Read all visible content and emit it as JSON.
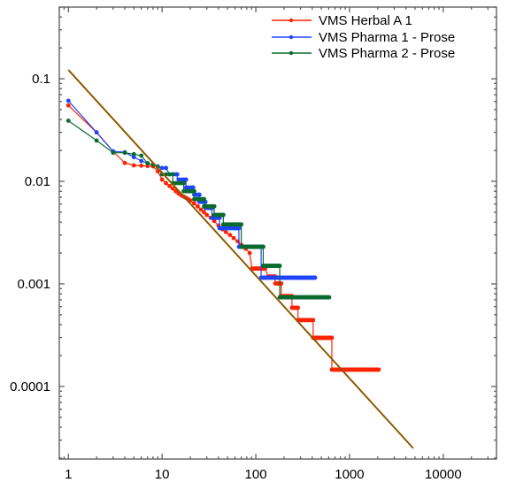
{
  "chart_data": {
    "type": "line",
    "title": "",
    "xlabel": "",
    "ylabel": "",
    "xscale": "log",
    "yscale": "log",
    "xlim": [
      0.8,
      37000
    ],
    "ylim": [
      1.96e-05,
      0.5
    ],
    "x_ticks": [
      {
        "value": 1,
        "label": "1"
      },
      {
        "value": 10,
        "label": "10"
      },
      {
        "value": 100,
        "label": "100"
      },
      {
        "value": 1000,
        "label": "1000"
      },
      {
        "value": 10000,
        "label": "10000"
      }
    ],
    "y_ticks": [
      {
        "value": 0.1,
        "label": "0.1"
      },
      {
        "value": 0.01,
        "label": "0.01"
      },
      {
        "value": 0.001,
        "label": "0.001"
      },
      {
        "value": 0.0001,
        "label": "0.0001"
      }
    ],
    "grid": false,
    "legend_position": "top-right",
    "series": [
      {
        "name": "VMS Herbal A 1",
        "color": "#ff2200",
        "points": [
          [
            1,
            0.055
          ],
          [
            2,
            0.03
          ],
          [
            3,
            0.0196
          ],
          [
            4,
            0.0151
          ],
          [
            5,
            0.0143
          ],
          [
            6,
            0.0142
          ],
          [
            7,
            0.0141
          ],
          [
            8,
            0.014
          ],
          [
            9,
            0.0125
          ],
          [
            10,
            0.0104
          ],
          [
            11,
            0.0096
          ],
          [
            12,
            0.009
          ],
          [
            13,
            0.0085
          ],
          [
            14,
            0.008
          ],
          [
            15,
            0.0076
          ],
          [
            16,
            0.0073
          ],
          [
            17,
            0.0071
          ],
          [
            18,
            0.0069
          ],
          [
            19,
            0.0067
          ],
          [
            20,
            0.0065
          ],
          [
            22,
            0.0061
          ],
          [
            24,
            0.0057
          ],
          [
            26,
            0.0053
          ],
          [
            28,
            0.005
          ],
          [
            30,
            0.0047
          ],
          [
            33,
            0.0044
          ],
          [
            36,
            0.0041
          ],
          [
            40,
            0.0037
          ],
          [
            44,
            0.0034
          ],
          [
            48,
            0.0032
          ],
          [
            53,
            0.003
          ],
          [
            58,
            0.0028
          ],
          [
            64,
            0.0026
          ],
          [
            70,
            0.0024
          ],
          [
            78,
            0.0022
          ],
          [
            86,
            0.002
          ],
          [
            91,
            0.00141
          ],
          [
            126,
            0.00141
          ],
          [
            135,
            0.00118
          ],
          [
            161,
            0.00118
          ],
          [
            161,
            0.00101
          ],
          [
            187,
            0.00101
          ],
          [
            187,
            0.00076
          ],
          [
            243,
            0.00076
          ],
          [
            243,
            0.000585
          ],
          [
            282,
            0.000585
          ],
          [
            282,
            0.000444
          ],
          [
            409,
            0.000444
          ],
          [
            409,
            0.000298
          ],
          [
            648,
            0.000298
          ],
          [
            648,
            0.000146
          ],
          [
            2048,
            0.000146
          ]
        ]
      },
      {
        "name": "VMS Pharma 1 - Prose",
        "color": "#1f44ff",
        "points": [
          [
            1,
            0.061
          ],
          [
            2,
            0.03
          ],
          [
            3,
            0.0196
          ],
          [
            4,
            0.0192
          ],
          [
            5,
            0.0172
          ],
          [
            6,
            0.0158
          ],
          [
            7,
            0.015
          ],
          [
            8,
            0.0145
          ],
          [
            9,
            0.014
          ],
          [
            10,
            0.0135
          ],
          [
            11,
            0.0135
          ],
          [
            12,
            0.0117
          ],
          [
            14.5,
            0.0117
          ],
          [
            14.5,
            0.0104
          ],
          [
            18,
            0.0104
          ],
          [
            18,
            0.0087
          ],
          [
            21.5,
            0.0087
          ],
          [
            21.5,
            0.0074
          ],
          [
            25,
            0.0074
          ],
          [
            25,
            0.0063
          ],
          [
            29,
            0.0063
          ],
          [
            29,
            0.0055
          ],
          [
            34,
            0.0055
          ],
          [
            34,
            0.0044
          ],
          [
            41,
            0.0044
          ],
          [
            41,
            0.0035
          ],
          [
            66,
            0.0035
          ],
          [
            66,
            0.0023
          ],
          [
            114,
            0.0023
          ],
          [
            114,
            0.00115
          ],
          [
            428,
            0.00115
          ]
        ]
      },
      {
        "name": "VMS Pharma 2 - Prose",
        "color": "#0a6b2e",
        "points": [
          [
            1,
            0.039
          ],
          [
            2,
            0.025
          ],
          [
            3,
            0.019
          ],
          [
            4,
            0.019
          ],
          [
            5,
            0.0184
          ],
          [
            6,
            0.0178
          ],
          [
            7,
            0.015
          ],
          [
            8,
            0.0145
          ],
          [
            9,
            0.0138
          ],
          [
            10,
            0.0117
          ],
          [
            13,
            0.0117
          ],
          [
            13,
            0.0096
          ],
          [
            17,
            0.0096
          ],
          [
            17,
            0.008
          ],
          [
            22,
            0.008
          ],
          [
            22,
            0.0067
          ],
          [
            28,
            0.0067
          ],
          [
            28,
            0.0057
          ],
          [
            36,
            0.0057
          ],
          [
            36,
            0.0047
          ],
          [
            45,
            0.0047
          ],
          [
            45,
            0.0038
          ],
          [
            70,
            0.0038
          ],
          [
            70,
            0.0023
          ],
          [
            120,
            0.0023
          ],
          [
            120,
            0.0015
          ],
          [
            180,
            0.0015
          ],
          [
            180,
            0.00074
          ],
          [
            607,
            0.00074
          ]
        ]
      },
      {
        "name": "reference line",
        "color": "#8b5a00",
        "points": [
          [
            1,
            0.122
          ],
          [
            4780,
            2.5e-05
          ]
        ]
      }
    ]
  }
}
